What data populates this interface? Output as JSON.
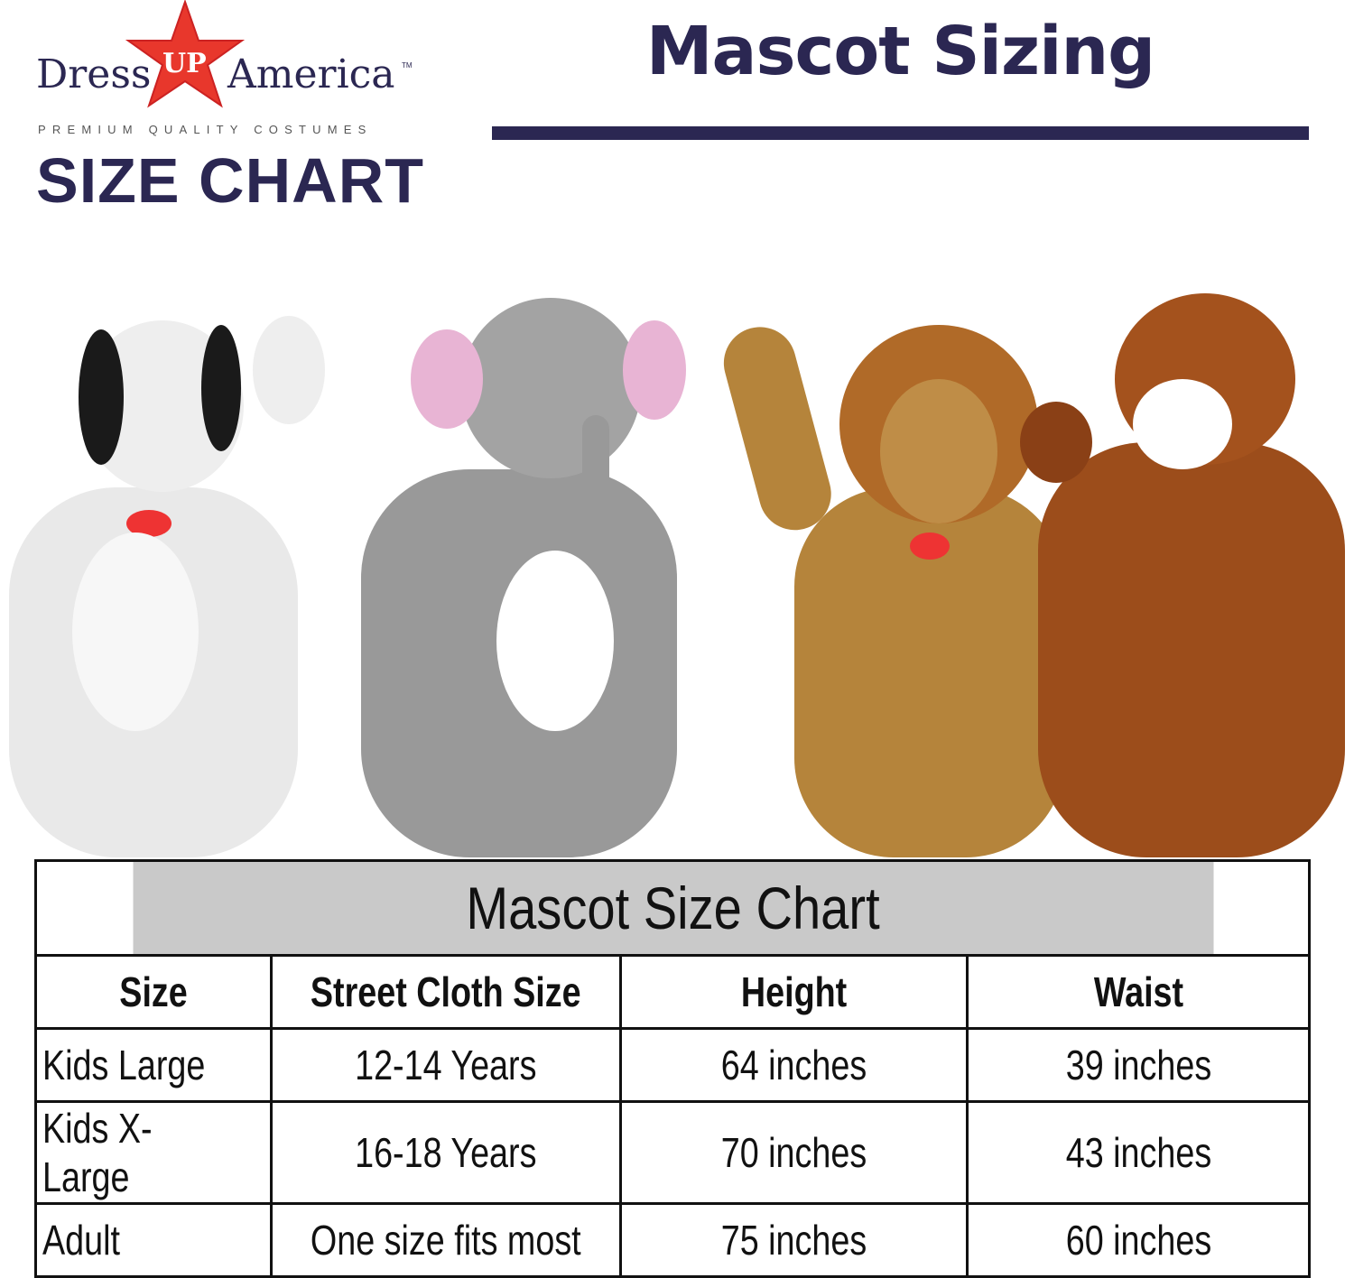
{
  "brand": {
    "logo_text": "Dress UP America",
    "tagline": "PREMIUM QUALITY COSTUMES",
    "heading": "SIZE CHART"
  },
  "title": "Mascot Sizing",
  "colors": {
    "navy": "#2b2752",
    "star_red": "#e8372c",
    "table_header_gray": "#c9c9c9"
  },
  "table": {
    "caption": "Mascot Size Chart",
    "columns": [
      "Size",
      "Street Cloth Size",
      "Height",
      "Waist"
    ],
    "rows": [
      [
        "Kids Large",
        "12-14 Years",
        "64 inches",
        "39 inches"
      ],
      [
        "Kids X-Large",
        "16-18 Years",
        "70 inches",
        "43 inches"
      ],
      [
        "Adult",
        "One size fits most",
        "75 inches",
        "60 inches"
      ]
    ]
  }
}
